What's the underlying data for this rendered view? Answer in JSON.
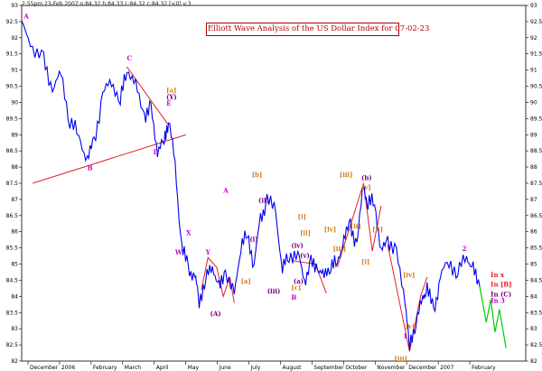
{
  "header": {
    "stamp": "2:55pm 23-Feb 2007 o:84.32 h:84.33 L:84.32 c:84.32 [<0] v:3"
  },
  "chart_data": {
    "type": "line",
    "title": "Elliott Wave Analysis of the US Dollar Index for 07-02-23",
    "ylim": [
      82,
      93
    ],
    "y_ticks": [
      "82",
      "82.5",
      "83",
      "83.5",
      "84",
      "84.5",
      "85",
      "85.5",
      "86",
      "86.5",
      "87",
      "87.5",
      "88",
      "88.5",
      "89",
      "89.5",
      "90",
      "90.5",
      "91",
      "91.5",
      "92",
      "92.5",
      "93"
    ],
    "x_ticks": [
      "December",
      "2006",
      "February",
      "March",
      "April",
      "May",
      "June",
      "July",
      "August",
      "September",
      "October",
      "November",
      "December",
      "2007",
      "February"
    ],
    "grid": false,
    "series": [
      {
        "style": "price",
        "color": "#0000ee",
        "points": [
          [
            0,
            92.4
          ],
          [
            5,
            91.7
          ],
          [
            10,
            91.3
          ],
          [
            14,
            90.4
          ],
          [
            18,
            90.9
          ],
          [
            22,
            89.4
          ],
          [
            26,
            89.0
          ],
          [
            30,
            88.2
          ],
          [
            33,
            88.8
          ],
          [
            37,
            90.2
          ],
          [
            41,
            90.7
          ],
          [
            45,
            90.0
          ],
          [
            48,
            91.1
          ],
          [
            52,
            90.5
          ],
          [
            56,
            89.6
          ],
          [
            59,
            89.8
          ],
          [
            62,
            88.5
          ],
          [
            65,
            88.8
          ],
          [
            67,
            89.5
          ],
          [
            70,
            88.1
          ],
          [
            73,
            85.5
          ],
          [
            76,
            84.9
          ],
          [
            79,
            84.6
          ],
          [
            81,
            83.9
          ],
          [
            84,
            84.5
          ],
          [
            87,
            85.0
          ],
          [
            90,
            84.2
          ],
          [
            93,
            84.8
          ],
          [
            97,
            84.0
          ],
          [
            100,
            85.6
          ],
          [
            103,
            85.9
          ],
          [
            106,
            85.0
          ],
          [
            109,
            86.4
          ],
          [
            112,
            87.0
          ],
          [
            116,
            86.6
          ],
          [
            119,
            84.8
          ],
          [
            122,
            85.3
          ],
          [
            126,
            85.3
          ],
          [
            129,
            84.5
          ],
          [
            132,
            85.0
          ],
          [
            135,
            84.9
          ],
          [
            138,
            84.6
          ],
          [
            141,
            85.0
          ],
          [
            144,
            85.0
          ],
          [
            147,
            85.8
          ],
          [
            150,
            86.2
          ],
          [
            153,
            85.6
          ],
          [
            156,
            87.5
          ],
          [
            158,
            86.8
          ],
          [
            161,
            87.0
          ],
          [
            164,
            85.3
          ],
          [
            167,
            85.8
          ],
          [
            171,
            85.3
          ],
          [
            175,
            83.9
          ],
          [
            177,
            82.4
          ],
          [
            180,
            83.3
          ],
          [
            183,
            83.9
          ],
          [
            185,
            84.3
          ],
          [
            188,
            83.5
          ],
          [
            191,
            84.6
          ],
          [
            195,
            85.1
          ],
          [
            199,
            84.7
          ],
          [
            203,
            85.3
          ],
          [
            206,
            84.8
          ],
          [
            209,
            84.3
          ]
        ]
      },
      {
        "style": "projection",
        "color": "#00cc00",
        "points": [
          [
            209,
            84.3
          ],
          [
            212,
            83.2
          ],
          [
            214,
            83.9
          ],
          [
            216,
            82.9
          ],
          [
            218,
            83.6
          ],
          [
            221,
            82.4
          ]
        ]
      }
    ],
    "trendlines": [
      {
        "color": "#e0202a",
        "points": [
          [
            5,
            87.5
          ],
          [
            75,
            89.0
          ]
        ]
      },
      {
        "color": "#e0202a",
        "points": [
          [
            48,
            91.1
          ],
          [
            67,
            89.3
          ]
        ]
      },
      {
        "color": "#e0202a",
        "points": [
          [
            82,
            84.2
          ],
          [
            85,
            85.2
          ],
          [
            89,
            84.9
          ],
          [
            92,
            84.0
          ],
          [
            95,
            84.6
          ],
          [
            97,
            83.8
          ]
        ]
      },
      {
        "color": "#e0202a",
        "points": [
          [
            124,
            85.1
          ],
          [
            134,
            85.0
          ],
          [
            139,
            84.1
          ]
        ]
      },
      {
        "color": "#e0202a",
        "points": [
          [
            144,
            84.9
          ],
          [
            156,
            87.5
          ],
          [
            160,
            85.4
          ],
          [
            164,
            86.8
          ]
        ]
      },
      {
        "color": "#e0202a",
        "points": [
          [
            167,
            85.6
          ],
          [
            177,
            82.3
          ],
          [
            182,
            84.0
          ],
          [
            185,
            84.6
          ]
        ]
      }
    ],
    "wave_labels": [
      {
        "text": "A",
        "x": 1,
        "y": 92.6,
        "color": "#cc00cc"
      },
      {
        "text": "C",
        "x": 48,
        "y": 91.3,
        "color": "#cc00cc"
      },
      {
        "text": "B",
        "x": 30,
        "y": 87.9,
        "color": "#cc00cc"
      },
      {
        "text": "[a]",
        "x": 66,
        "y": 90.3,
        "color": "#d08020"
      },
      {
        "text": "(Y)",
        "x": 66,
        "y": 90.1,
        "color": "#7a0080"
      },
      {
        "text": "E",
        "x": 66,
        "y": 89.9,
        "color": "#cc00cc"
      },
      {
        "text": "D",
        "x": 60,
        "y": 88.4,
        "color": "#cc00cc"
      },
      {
        "text": "X",
        "x": 75,
        "y": 85.9,
        "color": "#cc00cc"
      },
      {
        "text": "W",
        "x": 70,
        "y": 85.3,
        "color": "#cc00cc"
      },
      {
        "text": "Y",
        "x": 84,
        "y": 85.3,
        "color": "#cc00cc"
      },
      {
        "text": "(A)",
        "x": 86,
        "y": 83.4,
        "color": "#7a0080"
      },
      {
        "text": "A",
        "x": 92,
        "y": 87.2,
        "color": "#cc00cc"
      },
      {
        "text": "[b]",
        "x": 105,
        "y": 87.7,
        "color": "#d08020"
      },
      {
        "text": "(ii)",
        "x": 108,
        "y": 86.9,
        "color": "#7a0080"
      },
      {
        "text": "(i)",
        "x": 104,
        "y": 85.7,
        "color": "#7a0080"
      },
      {
        "text": "[a]",
        "x": 100,
        "y": 84.4,
        "color": "#d08020"
      },
      {
        "text": "(iv)",
        "x": 123,
        "y": 85.5,
        "color": "#7a0080"
      },
      {
        "text": "(v)",
        "x": 127,
        "y": 85.2,
        "color": "#7a0080"
      },
      {
        "text": "(iii)",
        "x": 112,
        "y": 84.1,
        "color": "#7a0080"
      },
      {
        "text": "(a)",
        "x": 124,
        "y": 84.4,
        "color": "#7a0080"
      },
      {
        "text": "[c]",
        "x": 123,
        "y": 84.2,
        "color": "#d08020"
      },
      {
        "text": "B",
        "x": 123,
        "y": 83.9,
        "color": "#cc00cc"
      },
      {
        "text": "[iii]",
        "x": 145,
        "y": 87.7,
        "color": "#d08020"
      },
      {
        "text": "(b)",
        "x": 155,
        "y": 87.6,
        "color": "#7a0080"
      },
      {
        "text": "[v]",
        "x": 155,
        "y": 87.3,
        "color": "#d08020"
      },
      {
        "text": "[i]",
        "x": 126,
        "y": 86.4,
        "color": "#d08020"
      },
      {
        "text": "[ii]",
        "x": 127,
        "y": 85.9,
        "color": "#d08020"
      },
      {
        "text": "[iv]",
        "x": 138,
        "y": 86.0,
        "color": "#d08020"
      },
      {
        "text": "[ii]",
        "x": 150,
        "y": 86.1,
        "color": "#d08020"
      },
      {
        "text": "[iii]",
        "x": 142,
        "y": 85.4,
        "color": "#d08020"
      },
      {
        "text": "[ii]",
        "x": 160,
        "y": 86.0,
        "color": "#d08020"
      },
      {
        "text": "[i]",
        "x": 155,
        "y": 85.0,
        "color": "#d08020"
      },
      {
        "text": "[iii]",
        "x": 170,
        "y": 82.0,
        "color": "#d08020"
      },
      {
        "text": "[iv]",
        "x": 174,
        "y": 84.6,
        "color": "#d08020"
      },
      {
        "text": "[v]",
        "x": 175,
        "y": 83.0,
        "color": "#d08020"
      },
      {
        "text": "1",
        "x": 174,
        "y": 82.7,
        "color": "#cc00cc"
      },
      {
        "text": "2",
        "x": 201,
        "y": 85.4,
        "color": "#cc00cc"
      },
      {
        "text": "In x",
        "x": 214,
        "y": 84.6,
        "color": "#e0202a"
      },
      {
        "text": "In [B]",
        "x": 214,
        "y": 84.3,
        "color": "#e0202a"
      },
      {
        "text": "In (C)",
        "x": 214,
        "y": 84.0,
        "color": "#7a0080"
      },
      {
        "text": "In 3",
        "x": 214,
        "y": 83.8,
        "color": "#cc00cc"
      }
    ]
  }
}
